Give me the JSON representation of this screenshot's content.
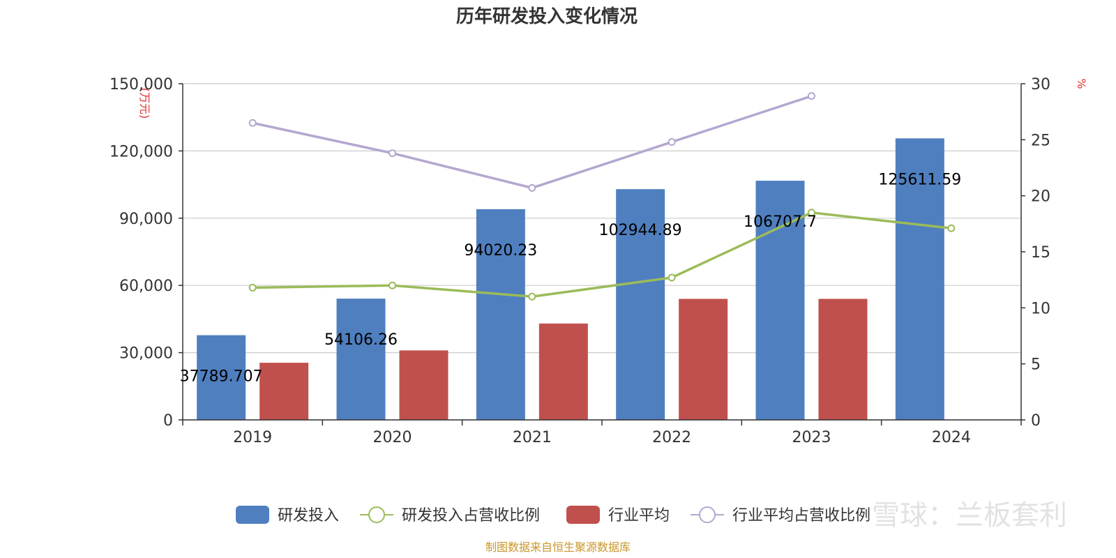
{
  "chart_data": {
    "type": "bar",
    "title": "历年研发投入变化情况",
    "categories": [
      "2019",
      "2020",
      "2021",
      "2022",
      "2023",
      "2024"
    ],
    "y_left": {
      "unit": "(万元)",
      "ylim": [
        0,
        150000
      ],
      "ticks": [
        0,
        30000,
        60000,
        90000,
        120000,
        150000
      ],
      "tick_labels": [
        "0",
        "30,000",
        "60,000",
        "90,000",
        "120,000",
        "150,000"
      ]
    },
    "y_right": {
      "unit": "%",
      "ylim": [
        0,
        30
      ],
      "ticks": [
        0,
        5,
        10,
        15,
        20,
        25,
        30
      ],
      "tick_labels": [
        "0",
        "5",
        "10",
        "15",
        "20",
        "25",
        "30"
      ]
    },
    "series": [
      {
        "name": "研发投入",
        "kind": "bar",
        "axis": "left",
        "color": "#4f7fbf",
        "values": [
          37789.707,
          54106.26,
          94020.23,
          102944.89,
          106707.7,
          125611.59
        ],
        "labels": [
          "37789.707",
          "54106.26",
          "94020.23",
          "102944.89",
          "106707.7",
          "125611.59"
        ]
      },
      {
        "name": "研发投入占营收比例",
        "kind": "line",
        "axis": "right",
        "color": "#9bbb59",
        "values": [
          11.8,
          12.0,
          11.0,
          12.7,
          18.5,
          17.1
        ]
      },
      {
        "name": "行业平均",
        "kind": "bar",
        "axis": "left",
        "color": "#c0504d",
        "values": [
          25500,
          31000,
          43000,
          54000,
          54000,
          null
        ]
      },
      {
        "name": "行业平均占营收比例",
        "kind": "line",
        "axis": "right",
        "color": "#b4a7d0",
        "values": [
          26.5,
          23.8,
          20.7,
          24.8,
          28.9,
          null
        ]
      }
    ],
    "legend_position": "bottom",
    "grid": true
  },
  "footer": {
    "source": "制图数据来自恒生聚源数据库",
    "watermark": "雪球：兰板套利"
  }
}
